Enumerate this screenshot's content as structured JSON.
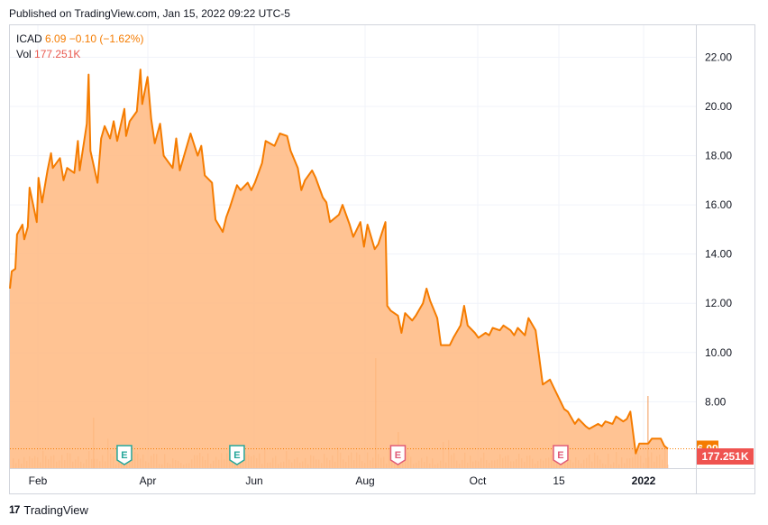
{
  "header": {
    "published": "Published on TradingView.com, Jan 15, 2022 09:22 UTC-5"
  },
  "legend": {
    "symbol": "ICAD",
    "price": "6.09",
    "change": "−0.10 (−1.62%)",
    "vol_label": "Vol",
    "vol_value": "177.251K"
  },
  "footer": {
    "logo_text": "TradingView",
    "logo_glyph": "17"
  },
  "colors": {
    "line": "#f57c00",
    "area": "#ffb980",
    "price_badge": "#f57c00",
    "volume_badge": "#ef5350",
    "earnings_green": "#26a69a",
    "earnings_red": "#e05c78"
  },
  "chart_data": {
    "type": "area",
    "y_ticks": [
      "22.00",
      "20.00",
      "18.00",
      "16.00",
      "14.00",
      "12.00",
      "10.00",
      "8.00"
    ],
    "x_ticks": [
      "Feb",
      "Apr",
      "Jun",
      "Aug",
      "Oct",
      "15",
      "2022"
    ],
    "ylim": [
      5.3,
      23.3
    ],
    "last_price_label": "6.09",
    "last_volume_label": "177.251K",
    "grid": true,
    "earnings_markers": [
      {
        "label": "E",
        "date": "2021-03-09",
        "color": "green"
      },
      {
        "label": "E",
        "date": "2021-05-11",
        "color": "green"
      },
      {
        "label": "E",
        "date": "2021-08-09",
        "color": "red"
      },
      {
        "label": "E",
        "date": "2021-11-08",
        "color": "red"
      }
    ],
    "series": [
      {
        "type": "area",
        "points": [
          [
            "2021-01-04",
            12.6
          ],
          [
            "2021-01-05",
            13.3
          ],
          [
            "2021-01-07",
            13.4
          ],
          [
            "2021-01-08",
            14.8
          ],
          [
            "2021-01-11",
            15.2
          ],
          [
            "2021-01-12",
            14.6
          ],
          [
            "2021-01-14",
            15.1
          ],
          [
            "2021-01-15",
            16.7
          ],
          [
            "2021-01-19",
            15.3
          ],
          [
            "2021-01-20",
            17.1
          ],
          [
            "2021-01-22",
            16.1
          ],
          [
            "2021-01-25",
            17.4
          ],
          [
            "2021-01-27",
            18.1
          ],
          [
            "2021-01-28",
            17.5
          ],
          [
            "2021-02-01",
            17.9
          ],
          [
            "2021-02-03",
            17.0
          ],
          [
            "2021-02-05",
            17.5
          ],
          [
            "2021-02-09",
            17.3
          ],
          [
            "2021-02-11",
            18.6
          ],
          [
            "2021-02-12",
            17.4
          ],
          [
            "2021-02-16",
            19.3
          ],
          [
            "2021-02-17",
            21.3
          ],
          [
            "2021-02-18",
            18.2
          ],
          [
            "2021-02-22",
            16.9
          ],
          [
            "2021-02-24",
            18.7
          ],
          [
            "2021-02-26",
            19.2
          ],
          [
            "2021-03-01",
            18.7
          ],
          [
            "2021-03-03",
            19.4
          ],
          [
            "2021-03-05",
            18.6
          ],
          [
            "2021-03-09",
            19.9
          ],
          [
            "2021-03-10",
            18.8
          ],
          [
            "2021-03-12",
            19.4
          ],
          [
            "2021-03-16",
            19.8
          ],
          [
            "2021-03-18",
            21.5
          ],
          [
            "2021-03-19",
            20.1
          ],
          [
            "2021-03-22",
            21.2
          ],
          [
            "2021-03-24",
            19.5
          ],
          [
            "2021-03-26",
            18.5
          ],
          [
            "2021-03-29",
            19.3
          ],
          [
            "2021-03-31",
            18.0
          ],
          [
            "2021-04-05",
            17.5
          ],
          [
            "2021-04-07",
            18.7
          ],
          [
            "2021-04-09",
            17.4
          ],
          [
            "2021-04-13",
            18.4
          ],
          [
            "2021-04-15",
            18.9
          ],
          [
            "2021-04-19",
            18.0
          ],
          [
            "2021-04-21",
            18.4
          ],
          [
            "2021-04-23",
            17.2
          ],
          [
            "2021-04-27",
            16.9
          ],
          [
            "2021-04-29",
            15.4
          ],
          [
            "2021-05-03",
            14.9
          ],
          [
            "2021-05-05",
            15.5
          ],
          [
            "2021-05-07",
            15.9
          ],
          [
            "2021-05-11",
            16.8
          ],
          [
            "2021-05-13",
            16.6
          ],
          [
            "2021-05-17",
            16.9
          ],
          [
            "2021-05-19",
            16.6
          ],
          [
            "2021-05-21",
            16.9
          ],
          [
            "2021-05-25",
            17.7
          ],
          [
            "2021-05-27",
            18.6
          ],
          [
            "2021-06-01",
            18.4
          ],
          [
            "2021-06-04",
            18.9
          ],
          [
            "2021-06-08",
            18.8
          ],
          [
            "2021-06-10",
            18.2
          ],
          [
            "2021-06-14",
            17.5
          ],
          [
            "2021-06-16",
            16.6
          ],
          [
            "2021-06-18",
            17.0
          ],
          [
            "2021-06-22",
            17.4
          ],
          [
            "2021-06-24",
            17.1
          ],
          [
            "2021-06-28",
            16.3
          ],
          [
            "2021-06-30",
            16.1
          ],
          [
            "2021-07-02",
            15.3
          ],
          [
            "2021-07-07",
            15.6
          ],
          [
            "2021-07-09",
            16.0
          ],
          [
            "2021-07-13",
            15.2
          ],
          [
            "2021-07-15",
            14.7
          ],
          [
            "2021-07-19",
            15.3
          ],
          [
            "2021-07-21",
            14.3
          ],
          [
            "2021-07-23",
            15.2
          ],
          [
            "2021-07-27",
            14.2
          ],
          [
            "2021-07-29",
            14.4
          ],
          [
            "2021-08-02",
            15.3
          ],
          [
            "2021-08-03",
            11.9
          ],
          [
            "2021-08-05",
            11.7
          ],
          [
            "2021-08-09",
            11.5
          ],
          [
            "2021-08-11",
            10.8
          ],
          [
            "2021-08-13",
            11.6
          ],
          [
            "2021-08-17",
            11.3
          ],
          [
            "2021-08-19",
            11.5
          ],
          [
            "2021-08-23",
            12.0
          ],
          [
            "2021-08-25",
            12.6
          ],
          [
            "2021-08-27",
            12.1
          ],
          [
            "2021-08-31",
            11.4
          ],
          [
            "2021-09-02",
            10.3
          ],
          [
            "2021-09-07",
            10.3
          ],
          [
            "2021-09-09",
            10.6
          ],
          [
            "2021-09-13",
            11.1
          ],
          [
            "2021-09-15",
            11.9
          ],
          [
            "2021-09-17",
            11.1
          ],
          [
            "2021-09-21",
            10.8
          ],
          [
            "2021-09-23",
            10.6
          ],
          [
            "2021-09-27",
            10.8
          ],
          [
            "2021-09-29",
            10.7
          ],
          [
            "2021-10-01",
            11.0
          ],
          [
            "2021-10-05",
            10.9
          ],
          [
            "2021-10-07",
            11.1
          ],
          [
            "2021-10-11",
            10.9
          ],
          [
            "2021-10-13",
            10.7
          ],
          [
            "2021-10-15",
            11.0
          ],
          [
            "2021-10-19",
            10.7
          ],
          [
            "2021-10-21",
            11.4
          ],
          [
            "2021-10-25",
            10.9
          ],
          [
            "2021-10-27",
            9.8
          ],
          [
            "2021-10-29",
            8.7
          ],
          [
            "2021-11-02",
            8.9
          ],
          [
            "2021-11-04",
            8.6
          ],
          [
            "2021-11-08",
            8.0
          ],
          [
            "2021-11-10",
            7.7
          ],
          [
            "2021-11-12",
            7.6
          ],
          [
            "2021-11-16",
            7.1
          ],
          [
            "2021-11-18",
            7.3
          ],
          [
            "2021-11-22",
            7.0
          ],
          [
            "2021-11-24",
            6.9
          ],
          [
            "2021-11-29",
            7.1
          ],
          [
            "2021-12-01",
            7.0
          ],
          [
            "2021-12-03",
            7.2
          ],
          [
            "2021-12-07",
            7.1
          ],
          [
            "2021-12-09",
            7.4
          ],
          [
            "2021-12-13",
            7.2
          ],
          [
            "2021-12-15",
            7.3
          ],
          [
            "2021-12-17",
            7.6
          ],
          [
            "2021-12-20",
            5.9
          ],
          [
            "2021-12-22",
            6.3
          ],
          [
            "2021-12-27",
            6.3
          ],
          [
            "2021-12-29",
            6.5
          ],
          [
            "2022-01-03",
            6.5
          ],
          [
            "2022-01-05",
            6.2
          ],
          [
            "2022-01-07",
            6.09
          ]
        ]
      }
    ]
  }
}
